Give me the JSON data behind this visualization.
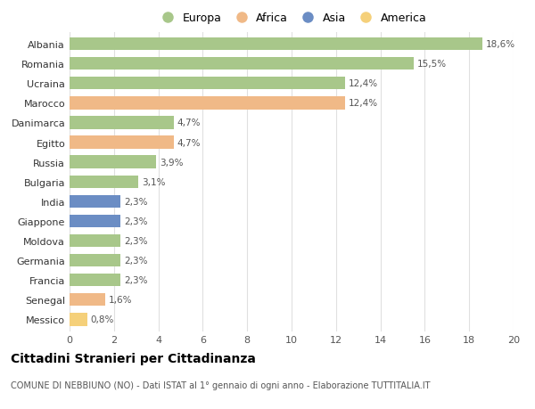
{
  "categories": [
    "Albania",
    "Romania",
    "Ucraina",
    "Marocco",
    "Danimarca",
    "Egitto",
    "Russia",
    "Bulgaria",
    "India",
    "Giappone",
    "Moldova",
    "Germania",
    "Francia",
    "Senegal",
    "Messico"
  ],
  "values": [
    18.6,
    15.5,
    12.4,
    12.4,
    4.7,
    4.7,
    3.9,
    3.1,
    2.3,
    2.3,
    2.3,
    2.3,
    2.3,
    1.6,
    0.8
  ],
  "labels": [
    "18,6%",
    "15,5%",
    "12,4%",
    "12,4%",
    "4,7%",
    "4,7%",
    "3,9%",
    "3,1%",
    "2,3%",
    "2,3%",
    "2,3%",
    "2,3%",
    "2,3%",
    "1,6%",
    "0,8%"
  ],
  "continents": [
    "Europa",
    "Europa",
    "Europa",
    "Africa",
    "Europa",
    "Africa",
    "Europa",
    "Europa",
    "Asia",
    "Asia",
    "Europa",
    "Europa",
    "Europa",
    "Africa",
    "America"
  ],
  "colors": {
    "Europa": "#a8c78a",
    "Africa": "#f0b987",
    "Asia": "#6b8dc4",
    "America": "#f5d07a"
  },
  "legend_order": [
    "Europa",
    "Africa",
    "Asia",
    "America"
  ],
  "title": "Cittadini Stranieri per Cittadinanza",
  "subtitle": "COMUNE DI NEBBIUNO (NO) - Dati ISTAT al 1° gennaio di ogni anno - Elaborazione TUTTITALIA.IT",
  "xlim": [
    0,
    20
  ],
  "xticks": [
    0,
    2,
    4,
    6,
    8,
    10,
    12,
    14,
    16,
    18,
    20
  ],
  "background_color": "#ffffff",
  "grid_color": "#e0e0e0"
}
